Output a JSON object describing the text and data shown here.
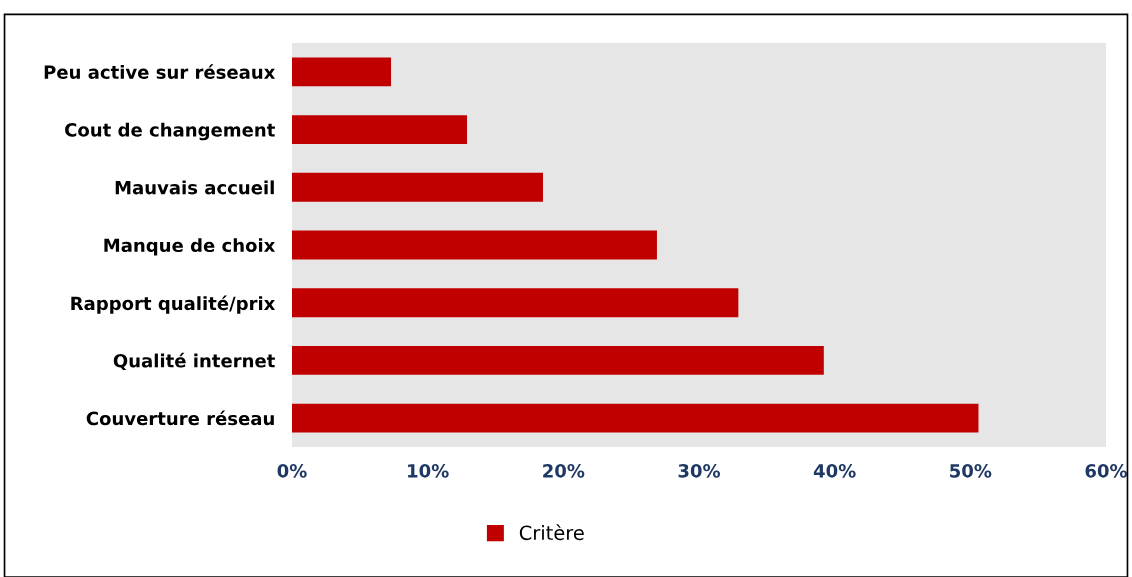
{
  "chart_data": {
    "type": "bar",
    "orientation": "horizontal",
    "categories": [
      "Peu active sur réseaux",
      "Cout de changement",
      "Mauvais accueil",
      "Manque de choix",
      "Rapport qualité/prix",
      "Qualité internet",
      "Couverture réseau"
    ],
    "series": [
      {
        "name": "Critère",
        "color": "#c00000",
        "values": [
          7.3,
          12.9,
          18.5,
          26.9,
          32.9,
          39.2,
          50.6
        ]
      }
    ],
    "xlim": [
      0,
      60
    ],
    "xticks": [
      {
        "value": 0,
        "label": "0%"
      },
      {
        "value": 10,
        "label": "10%"
      },
      {
        "value": 20,
        "label": "20%"
      },
      {
        "value": 30,
        "label": "30%"
      },
      {
        "value": 40,
        "label": "40%"
      },
      {
        "value": 50,
        "label": "50%"
      },
      {
        "value": 60,
        "label": "60%"
      }
    ],
    "grid": false,
    "legend": "bottom"
  }
}
